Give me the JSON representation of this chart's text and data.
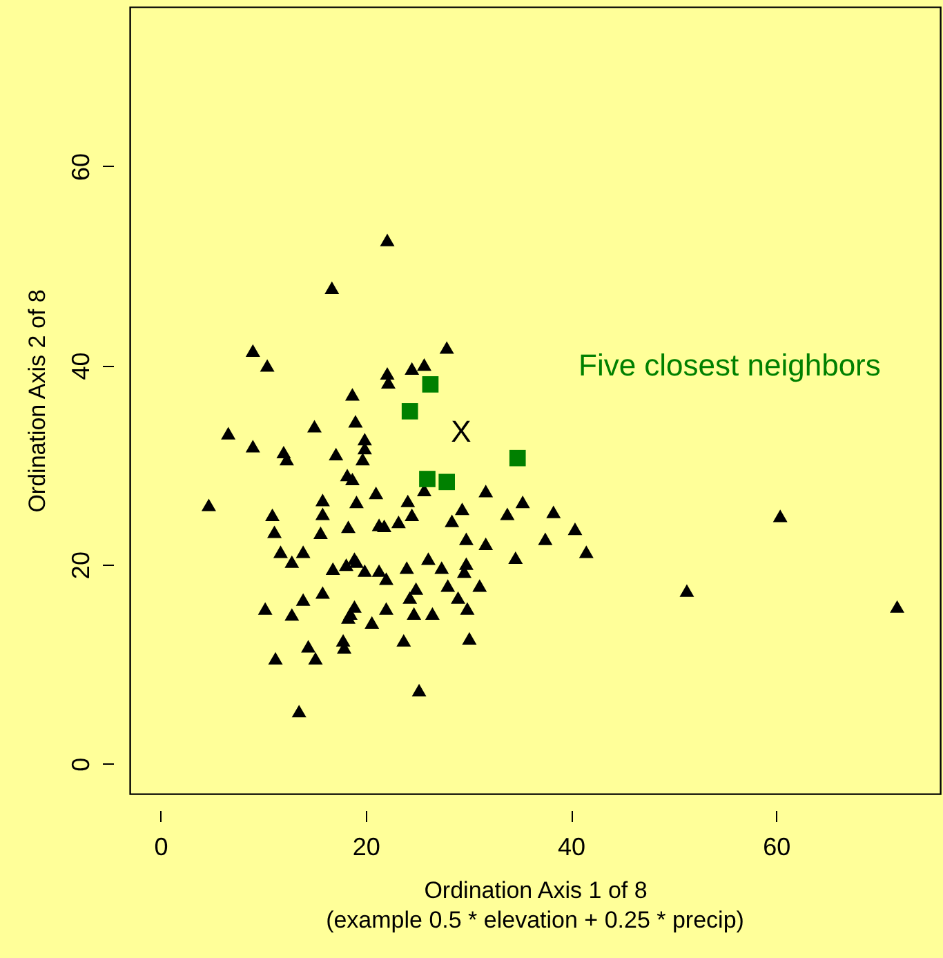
{
  "chart_data": {
    "type": "scatter",
    "xlabel": "Ordination Axis 1 of 8",
    "ylabel": "Ordination Axis 2 of 8",
    "annotations": [
      "(example 0.5 * elevation + 0.25 * precip)",
      "X"
    ],
    "xlim": [
      -3,
      76
    ],
    "ylim": [
      -3,
      76
    ],
    "xticks": [
      0,
      20,
      40,
      60
    ],
    "yticks": [
      0,
      20,
      40,
      60
    ],
    "grid": false,
    "series": [
      {
        "color": "#000000",
        "marker": "triangle",
        "x": [
          22.1,
          16.7,
          9.0,
          10.4,
          22.1,
          22.2,
          24.5,
          25.7,
          27.9,
          18.7,
          6.6,
          9.0,
          15.0,
          19.0,
          19.9,
          19.9,
          19.7,
          12.0,
          12.3,
          17.1,
          18.2,
          18.7,
          4.7,
          10.9,
          11.1,
          15.8,
          15.8,
          15.6,
          19.1,
          18.3,
          21.0,
          24.1,
          25.7,
          24.5,
          23.2,
          21.3,
          21.8,
          31.7,
          29.4,
          28.4,
          33.8,
          35.3,
          29.8,
          31.7,
          34.6,
          37.5,
          38.3,
          40.4,
          41.5,
          60.4,
          51.3,
          71.8,
          11.7,
          13.9,
          12.8,
          16.8,
          18.1,
          18.9,
          19.1,
          19.9,
          21.3,
          22.0,
          24.0,
          26.1,
          27.4,
          29.8,
          29.6,
          24.9,
          24.3,
          28.0,
          29.0,
          31.1,
          29.9,
          26.5,
          24.7,
          22.0,
          18.9,
          18.5,
          18.3,
          20.6,
          15.8,
          13.9,
          12.8,
          10.2,
          14.4,
          15.1,
          11.2,
          17.8,
          17.9,
          23.7,
          30.1,
          25.2,
          13.5
        ],
        "values": [
          52.6,
          47.8,
          41.5,
          40.0,
          39.2,
          38.3,
          39.7,
          40.1,
          41.8,
          37.1,
          33.2,
          31.9,
          33.9,
          34.4,
          32.6,
          31.7,
          30.6,
          31.3,
          30.6,
          31.1,
          29.0,
          28.6,
          26.0,
          25.0,
          23.3,
          26.5,
          25.1,
          23.2,
          26.3,
          23.8,
          27.2,
          26.4,
          27.5,
          25.0,
          24.3,
          24.0,
          23.9,
          27.4,
          25.6,
          24.4,
          25.1,
          26.3,
          22.6,
          22.1,
          20.7,
          22.6,
          25.3,
          23.6,
          21.3,
          24.9,
          17.4,
          15.8,
          21.3,
          21.3,
          20.3,
          19.6,
          20.0,
          20.6,
          20.3,
          19.4,
          19.4,
          18.6,
          19.7,
          20.6,
          19.7,
          20.1,
          19.3,
          17.6,
          16.7,
          17.9,
          16.7,
          17.9,
          15.6,
          15.1,
          15.1,
          15.6,
          15.8,
          15.1,
          14.7,
          14.2,
          17.2,
          16.5,
          15.0,
          15.6,
          11.8,
          10.6,
          10.6,
          12.4,
          11.7,
          12.4,
          12.6,
          7.4,
          5.3
        ]
      },
      {
        "name": "Five closest neighbors",
        "color": "#008000",
        "marker": "square",
        "x": [
          26.3,
          24.3,
          34.8,
          26.0,
          27.9
        ],
        "values": [
          38.1,
          35.4,
          30.7,
          28.6,
          28.3
        ]
      }
    ]
  }
}
